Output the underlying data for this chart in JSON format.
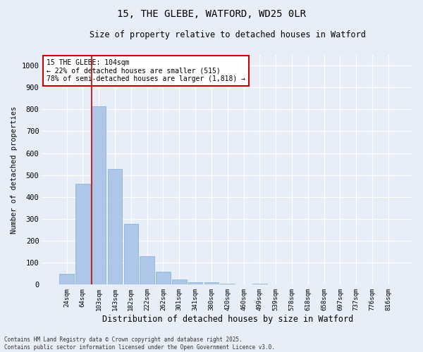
{
  "title": "15, THE GLEBE, WATFORD, WD25 0LR",
  "subtitle": "Size of property relative to detached houses in Watford",
  "xlabel": "Distribution of detached houses by size in Watford",
  "ylabel": "Number of detached properties",
  "categories": [
    "24sqm",
    "64sqm",
    "103sqm",
    "143sqm",
    "182sqm",
    "222sqm",
    "262sqm",
    "301sqm",
    "341sqm",
    "380sqm",
    "420sqm",
    "460sqm",
    "499sqm",
    "539sqm",
    "578sqm",
    "618sqm",
    "658sqm",
    "697sqm",
    "737sqm",
    "776sqm",
    "816sqm"
  ],
  "values": [
    50,
    462,
    815,
    527,
    278,
    128,
    60,
    25,
    10,
    10,
    5,
    2,
    5,
    0,
    0,
    0,
    0,
    0,
    0,
    0,
    0
  ],
  "bar_color": "#aec6e8",
  "bar_edge_color": "#7aafd4",
  "highlight_index": 2,
  "highlight_line_color": "#cc0000",
  "annotation_box_color": "#cc0000",
  "annotation_text": "15 THE GLEBE: 104sqm\n← 22% of detached houses are smaller (515)\n78% of semi-detached houses are larger (1,818) →",
  "ylim": [
    0,
    1050
  ],
  "yticks": [
    0,
    100,
    200,
    300,
    400,
    500,
    600,
    700,
    800,
    900,
    1000
  ],
  "bg_color": "#e8eef7",
  "grid_color": "#ffffff",
  "footnote": "Contains HM Land Registry data © Crown copyright and database right 2025.\nContains public sector information licensed under the Open Government Licence v3.0."
}
